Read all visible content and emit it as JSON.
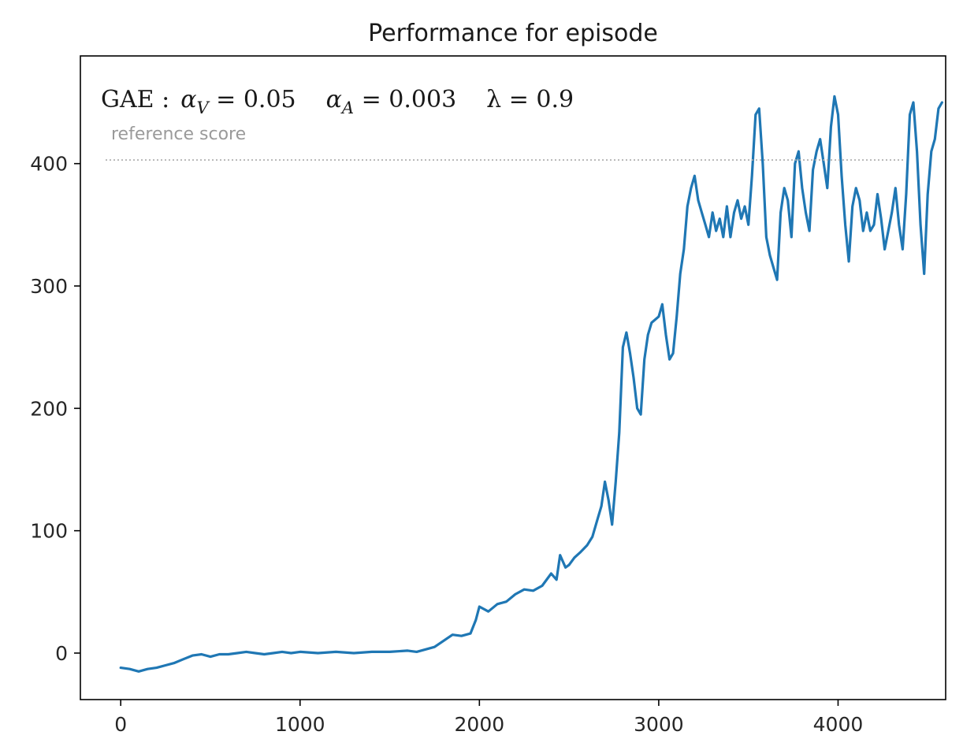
{
  "chart_data": {
    "type": "line",
    "title": "Performance for episode",
    "xlabel": "",
    "ylabel": "",
    "xlim": [
      -225,
      4600
    ],
    "ylim": [
      -38,
      488
    ],
    "x_ticks": [
      0,
      1000,
      2000,
      3000,
      4000
    ],
    "y_ticks": [
      0,
      100,
      200,
      300,
      400
    ],
    "grid": false,
    "legend": "none",
    "colors": {
      "series": "#1f77b4",
      "reference": "#aaaaaa",
      "axes": "#000000"
    },
    "annotation": {
      "gae": "GAE :",
      "alpha_v": "α",
      "alpha_v_sub": "V",
      "alpha_v_value": " = 0.05",
      "alpha_a": "α",
      "alpha_a_sub": "A",
      "alpha_a_value": " = 0.003",
      "lambda_text": "λ = 0.9"
    },
    "reference_line": {
      "y": 403,
      "label": "reference score"
    },
    "series": [
      {
        "x": [
          0,
          50,
          100,
          150,
          200,
          250,
          300,
          350,
          400,
          450,
          500,
          550,
          600,
          650,
          700,
          750,
          800,
          850,
          900,
          950,
          1000,
          1100,
          1200,
          1300,
          1400,
          1500,
          1600,
          1650,
          1700,
          1750,
          1800,
          1850,
          1900,
          1950,
          1980,
          2000,
          2050,
          2100,
          2150,
          2200,
          2250,
          2300,
          2350,
          2400,
          2430,
          2450,
          2480,
          2500,
          2530,
          2560,
          2600,
          2630,
          2660,
          2680,
          2700,
          2720,
          2740,
          2760,
          2780,
          2800,
          2820,
          2840,
          2860,
          2880,
          2900,
          2920,
          2940,
          2960,
          3000,
          3020,
          3040,
          3060,
          3080,
          3100,
          3120,
          3140,
          3160,
          3180,
          3200,
          3220,
          3240,
          3260,
          3280,
          3300,
          3320,
          3340,
          3360,
          3380,
          3400,
          3420,
          3440,
          3460,
          3480,
          3500,
          3520,
          3540,
          3560,
          3580,
          3600,
          3620,
          3640,
          3660,
          3680,
          3700,
          3720,
          3740,
          3760,
          3780,
          3800,
          3820,
          3840,
          3860,
          3880,
          3900,
          3920,
          3940,
          3960,
          3980,
          4000,
          4020,
          4040,
          4060,
          4080,
          4100,
          4120,
          4140,
          4160,
          4180,
          4200,
          4220,
          4240,
          4260,
          4280,
          4300,
          4320,
          4340,
          4360,
          4380,
          4400,
          4420,
          4440,
          4460,
          4480,
          4500,
          4520,
          4540,
          4560,
          4580
        ],
        "y": [
          -12,
          -13,
          -15,
          -13,
          -12,
          -10,
          -8,
          -5,
          -2,
          -1,
          -3,
          -1,
          -1,
          0,
          1,
          0,
          -1,
          0,
          1,
          0,
          1,
          0,
          1,
          0,
          1,
          1,
          2,
          1,
          3,
          5,
          10,
          15,
          14,
          16,
          27,
          38,
          34,
          40,
          42,
          48,
          52,
          51,
          55,
          65,
          60,
          80,
          70,
          72,
          78,
          82,
          88,
          95,
          110,
          120,
          140,
          125,
          105,
          140,
          180,
          250,
          262,
          245,
          225,
          200,
          195,
          240,
          260,
          270,
          275,
          285,
          260,
          240,
          245,
          275,
          310,
          330,
          365,
          380,
          390,
          370,
          360,
          350,
          340,
          360,
          345,
          355,
          340,
          365,
          340,
          360,
          370,
          355,
          365,
          350,
          390,
          440,
          445,
          400,
          340,
          325,
          315,
          305,
          360,
          380,
          370,
          340,
          400,
          410,
          380,
          360,
          345,
          395,
          410,
          420,
          400,
          380,
          430,
          455,
          440,
          390,
          350,
          320,
          365,
          380,
          370,
          345,
          360,
          345,
          350,
          375,
          355,
          330,
          345,
          360,
          380,
          350,
          330,
          375,
          440,
          450,
          410,
          350,
          310,
          375,
          410,
          420,
          445,
          450
        ]
      }
    ]
  }
}
